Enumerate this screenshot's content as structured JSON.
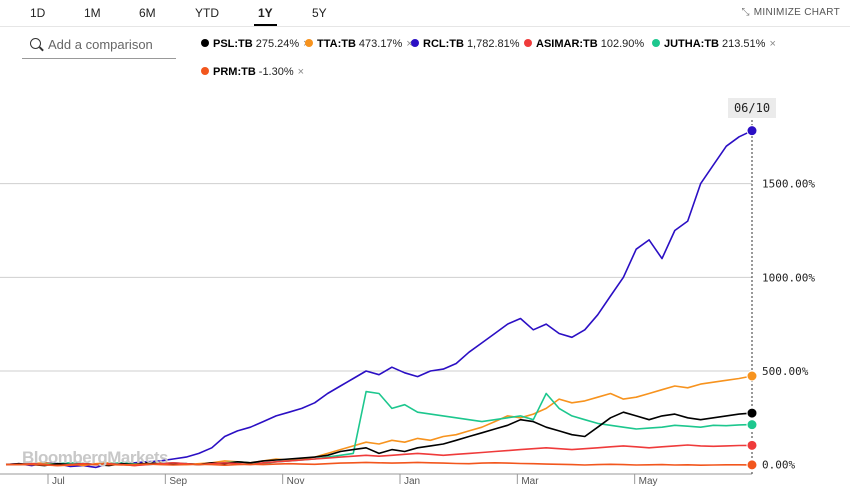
{
  "toolbar": {
    "ranges": [
      {
        "label": "1D",
        "active": false
      },
      {
        "label": "1M",
        "active": false
      },
      {
        "label": "6M",
        "active": false
      },
      {
        "label": "YTD",
        "active": false
      },
      {
        "label": "1Y",
        "active": true
      },
      {
        "label": "5Y",
        "active": false
      }
    ],
    "minimize_label": "MINIMIZE CHART"
  },
  "search": {
    "placeholder": "Add a comparison",
    "value": ""
  },
  "legend": [
    {
      "symbol": "PSL:TB",
      "change": "275.24%",
      "color": "#000000"
    },
    {
      "symbol": "TTA:TB",
      "change": "473.17%",
      "color": "#f7931e"
    },
    {
      "symbol": "RCL:TB",
      "change": "1,782.81%",
      "color": "#2b0fc4"
    },
    {
      "symbol": "ASIMAR:TB",
      "change": "102.90%",
      "color": "#ef3b3b"
    },
    {
      "symbol": "JUTHA:TB",
      "change": "213.51%",
      "color": "#1dc78e"
    },
    {
      "symbol": "PRM:TB",
      "change": "-1.30%",
      "color": "#f2561d"
    }
  ],
  "chart_data": {
    "type": "line",
    "current_date_label": "06/10",
    "x_labels": [
      "Jul",
      "Sep",
      "Nov",
      "Jan",
      "Mar",
      "May"
    ],
    "y_ticks": [
      {
        "value": 0,
        "label": "0.00%"
      },
      {
        "value": 500,
        "label": "500.00%"
      },
      {
        "value": 1000,
        "label": "1000.00%"
      },
      {
        "value": 1500,
        "label": "1500.00%"
      }
    ],
    "ylim": [
      -50,
      2000
    ],
    "series": [
      {
        "name": "RCL:TB",
        "color": "#2b0fc4",
        "values": [
          0,
          5,
          -5,
          10,
          5,
          -10,
          -5,
          -15,
          5,
          0,
          10,
          15,
          20,
          30,
          40,
          60,
          90,
          150,
          180,
          200,
          230,
          260,
          280,
          300,
          330,
          380,
          420,
          460,
          500,
          480,
          520,
          490,
          470,
          500,
          510,
          540,
          600,
          650,
          700,
          750,
          780,
          720,
          750,
          700,
          680,
          720,
          800,
          900,
          1000,
          1150,
          1200,
          1100,
          1250,
          1300,
          1500,
          1600,
          1700,
          1750,
          1782.81
        ]
      },
      {
        "name": "TTA:TB",
        "color": "#f7931e",
        "values": [
          0,
          0,
          5,
          10,
          0,
          5,
          -5,
          5,
          10,
          0,
          -5,
          5,
          10,
          5,
          0,
          5,
          10,
          20,
          15,
          10,
          20,
          30,
          25,
          30,
          40,
          60,
          80,
          100,
          120,
          110,
          130,
          120,
          140,
          130,
          150,
          160,
          180,
          200,
          230,
          260,
          250,
          270,
          300,
          350,
          330,
          340,
          360,
          380,
          350,
          360,
          380,
          400,
          420,
          410,
          430,
          440,
          450,
          460,
          473.17
        ]
      },
      {
        "name": "PSL:TB",
        "color": "#000000",
        "values": [
          0,
          5,
          0,
          -5,
          5,
          0,
          5,
          0,
          -5,
          5,
          0,
          10,
          5,
          0,
          5,
          0,
          10,
          5,
          15,
          10,
          20,
          25,
          30,
          35,
          40,
          50,
          70,
          80,
          90,
          60,
          80,
          70,
          90,
          100,
          110,
          130,
          150,
          170,
          190,
          210,
          240,
          230,
          200,
          180,
          160,
          150,
          200,
          250,
          280,
          260,
          240,
          260,
          270,
          250,
          240,
          250,
          260,
          270,
          275.24
        ]
      },
      {
        "name": "JUTHA:TB",
        "color": "#1dc78e",
        "values": [
          0,
          0,
          5,
          0,
          5,
          10,
          5,
          0,
          5,
          10,
          5,
          0,
          5,
          10,
          5,
          0,
          5,
          10,
          15,
          10,
          5,
          15,
          20,
          25,
          30,
          40,
          50,
          60,
          390,
          380,
          300,
          320,
          280,
          270,
          260,
          250,
          240,
          230,
          240,
          250,
          260,
          240,
          380,
          300,
          260,
          240,
          220,
          210,
          200,
          190,
          195,
          200,
          210,
          205,
          200,
          210,
          208,
          212,
          213.51
        ]
      },
      {
        "name": "ASIMAR:TB",
        "color": "#ef3b3b",
        "values": [
          0,
          0,
          5,
          0,
          -5,
          0,
          5,
          0,
          5,
          0,
          -5,
          0,
          5,
          10,
          5,
          0,
          5,
          10,
          5,
          0,
          10,
          15,
          20,
          25,
          30,
          35,
          40,
          45,
          50,
          45,
          50,
          55,
          60,
          55,
          50,
          55,
          60,
          65,
          70,
          75,
          80,
          85,
          90,
          85,
          80,
          85,
          90,
          95,
          100,
          95,
          90,
          95,
          100,
          105,
          100,
          98,
          100,
          102,
          102.9
        ]
      },
      {
        "name": "PRM:TB",
        "color": "#f2561d",
        "values": [
          0,
          0,
          0,
          -2,
          -5,
          -3,
          0,
          2,
          0,
          -2,
          0,
          3,
          0,
          -2,
          0,
          2,
          0,
          -3,
          0,
          2,
          0,
          3,
          5,
          3,
          2,
          5,
          8,
          10,
          12,
          10,
          8,
          10,
          12,
          10,
          8,
          6,
          5,
          8,
          10,
          8,
          6,
          5,
          3,
          2,
          0,
          -2,
          0,
          2,
          0,
          -2,
          -1,
          0,
          -2,
          -1,
          -3,
          -2,
          -1,
          -1,
          -1.3
        ]
      }
    ]
  },
  "branding": {
    "watermark": "BloombergMarkets"
  },
  "icons": {
    "search": "search-icon",
    "minimize": "minimize-icon",
    "remove": "close-icon"
  }
}
